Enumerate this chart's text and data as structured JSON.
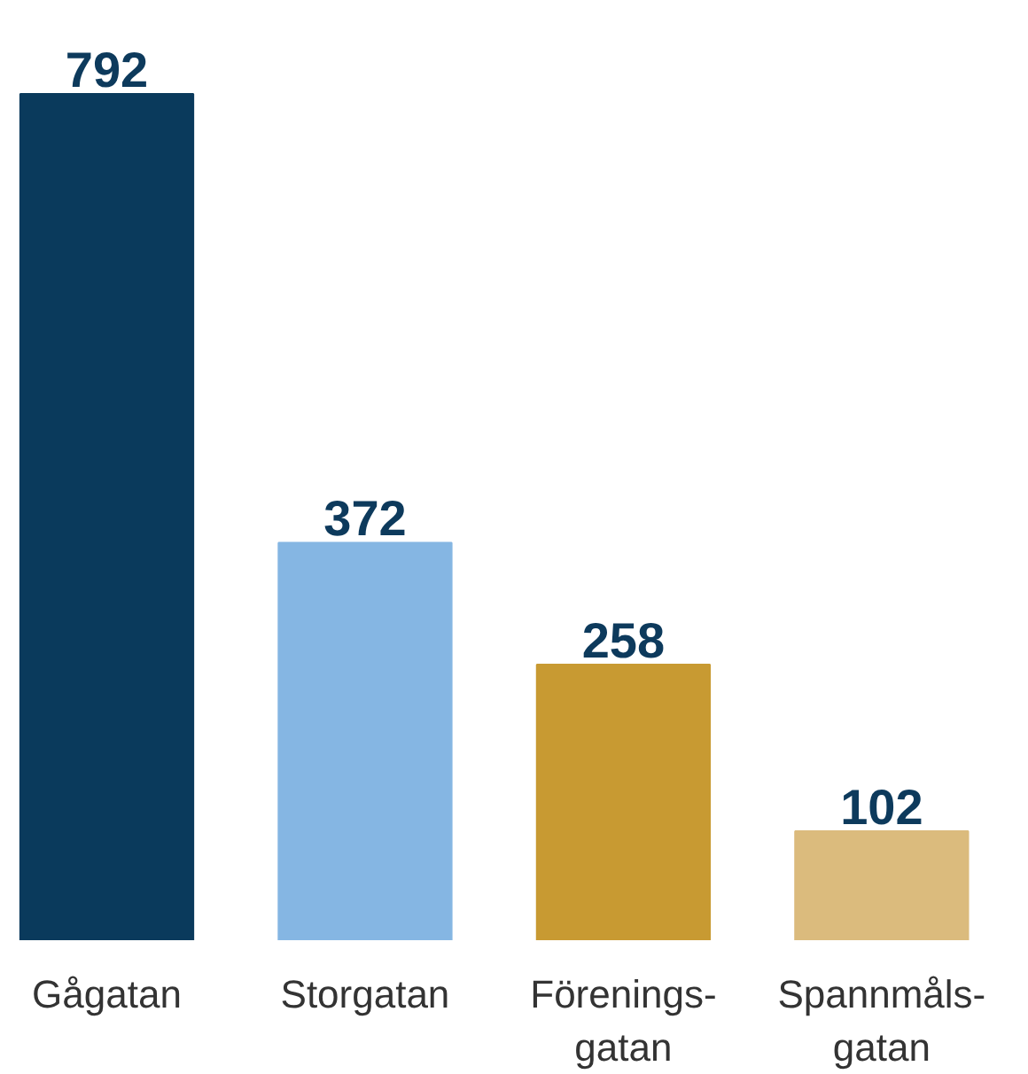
{
  "chart_data": {
    "type": "bar",
    "categories": [
      "Gågatan",
      "Storgatan",
      "Förenings-\ngatan",
      "Spannmåls-\ngatan"
    ],
    "values": [
      792,
      372,
      258,
      102
    ],
    "colors": [
      "#0a3a5c",
      "#85b6e3",
      "#c89a32",
      "#dbbb7d"
    ],
    "data_labels": true,
    "grid": false
  }
}
